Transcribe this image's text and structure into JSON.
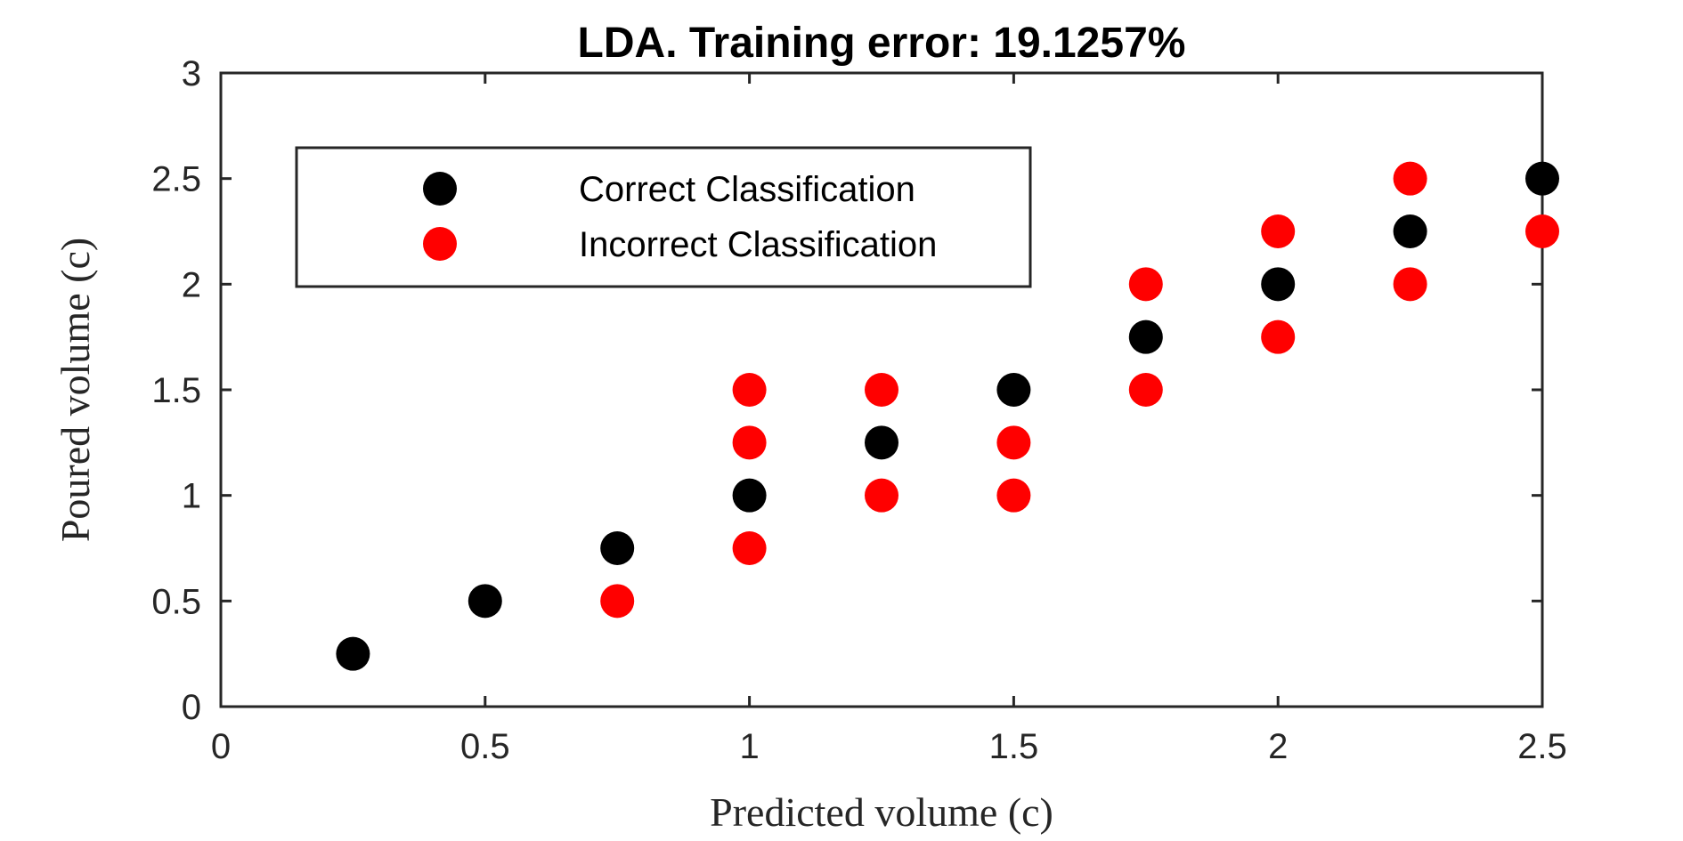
{
  "chart_data": {
    "type": "scatter",
    "title": "LDA. Training error: 19.1257%",
    "xlabel": "Predicted volume (c)",
    "ylabel": "Poured volume (c)",
    "xlim": [
      0,
      2.5
    ],
    "ylim": [
      0,
      3
    ],
    "xticks": [
      "0",
      "0.5",
      "1",
      "1.5",
      "2",
      "2.5"
    ],
    "yticks": [
      "0",
      "0.5",
      "1",
      "1.5",
      "2",
      "2.5",
      "3"
    ],
    "grid": false,
    "legend_position": "top-left",
    "series": [
      {
        "name": "Correct Classification",
        "color": "#000000",
        "points": [
          {
            "x": 0.25,
            "y": 0.25
          },
          {
            "x": 0.5,
            "y": 0.5
          },
          {
            "x": 0.75,
            "y": 0.75
          },
          {
            "x": 1.0,
            "y": 1.0
          },
          {
            "x": 1.25,
            "y": 1.25
          },
          {
            "x": 1.5,
            "y": 1.5
          },
          {
            "x": 1.75,
            "y": 1.75
          },
          {
            "x": 2.0,
            "y": 2.0
          },
          {
            "x": 2.25,
            "y": 2.25
          },
          {
            "x": 2.5,
            "y": 2.5
          }
        ]
      },
      {
        "name": "Incorrect Classification",
        "color": "#ff0000",
        "points": [
          {
            "x": 0.75,
            "y": 0.5
          },
          {
            "x": 1.0,
            "y": 0.75
          },
          {
            "x": 1.0,
            "y": 1.25
          },
          {
            "x": 1.0,
            "y": 1.5
          },
          {
            "x": 1.25,
            "y": 1.0
          },
          {
            "x": 1.25,
            "y": 1.5
          },
          {
            "x": 1.5,
            "y": 1.0
          },
          {
            "x": 1.5,
            "y": 1.25
          },
          {
            "x": 1.75,
            "y": 1.5
          },
          {
            "x": 1.75,
            "y": 2.0
          },
          {
            "x": 2.0,
            "y": 1.75
          },
          {
            "x": 2.0,
            "y": 2.25
          },
          {
            "x": 2.25,
            "y": 2.0
          },
          {
            "x": 2.25,
            "y": 2.5
          },
          {
            "x": 2.5,
            "y": 2.25
          }
        ]
      }
    ]
  }
}
